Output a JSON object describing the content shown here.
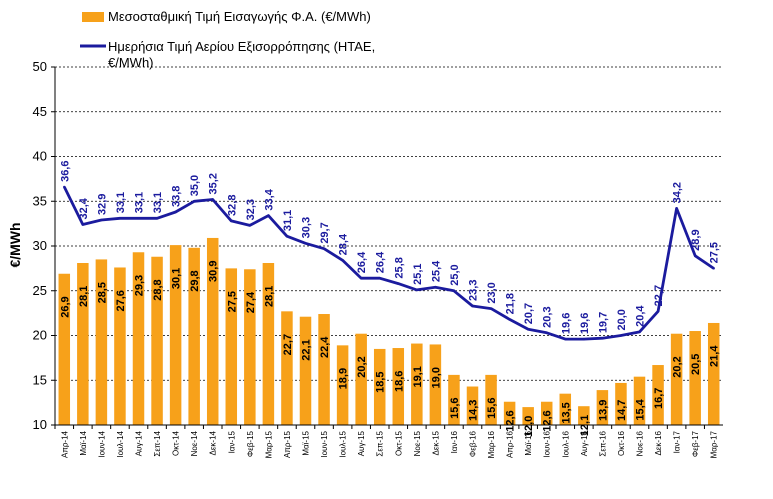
{
  "colors": {
    "bar": "#F7A11A",
    "line": "#1B1B9E",
    "grid": "#000000"
  },
  "legend": {
    "bar_label": "Μεσοσταθμική Τιμή Εισαγωγής Φ.Α. (€/MWh)",
    "line_label_1": "Ημερήσια Τιμή Αερίου Εξισορρόπησης (ΗΤΑΕ,",
    "line_label_2": "€/MWh)"
  },
  "chart_data": {
    "type": "bar",
    "ylabel": "€/MWh",
    "ylim": [
      10,
      50
    ],
    "yticks": [
      "10",
      "15",
      "20",
      "25",
      "30",
      "35",
      "40",
      "45",
      "50"
    ],
    "grid": "horizontal dashed",
    "legend_position": "top-left",
    "categories": [
      "Απρ-14",
      "Μαϊ-14",
      "Ιουν-14",
      "Ιουλ-14",
      "Αυγ-14",
      "Σεπ-14",
      "Οκτ-14",
      "Νοε-14",
      "Δεκ-14",
      "Ιαν-15",
      "Φεβ-15",
      "Μαρ-15",
      "Απρ-15",
      "Μαϊ-15",
      "Ιουν-15",
      "Ιουλ-15",
      "Αυγ-15",
      "Σεπ-15",
      "Οκτ-15",
      "Νοε-15",
      "Δεκ-15",
      "Ιαν-16",
      "Φεβ-16",
      "Μαρ-16",
      "Απρ-16",
      "Μαϊ-16",
      "Ιουν-16",
      "Ιουλ-16",
      "Αυγ-16",
      "Σεπ-16",
      "Οκτ-16",
      "Νοε-16",
      "Δεκ-16",
      "Ιαν-17",
      "Φεβ-17",
      "Μαρ-17"
    ],
    "series": [
      {
        "name": "Μεσοσταθμική Τιμή Εισαγωγής Φ.Α. (€/MWh)",
        "kind": "bar",
        "values": [
          26.9,
          28.1,
          28.5,
          27.6,
          29.3,
          28.8,
          30.1,
          29.8,
          30.9,
          27.5,
          27.4,
          28.1,
          22.7,
          22.1,
          22.4,
          18.9,
          20.2,
          18.5,
          18.6,
          19.1,
          19.0,
          15.6,
          14.3,
          15.6,
          12.6,
          12.0,
          12.6,
          13.5,
          12.1,
          13.9,
          14.7,
          15.4,
          16.7,
          20.2,
          20.5,
          21.4
        ],
        "labels": [
          "26,9",
          "28,1",
          "28,5",
          "27,6",
          "29,3",
          "28,8",
          "30,1",
          "29,8",
          "30,9",
          "27,5",
          "27,4",
          "28,1",
          "22,7",
          "22,1",
          "22,4",
          "18,9",
          "20,2",
          "18,5",
          "18,6",
          "19,1",
          "19,0",
          "15,6",
          "14,3",
          "15,6",
          "12,6",
          "12,0",
          "12,6",
          "13,5",
          "12,1",
          "13,9",
          "14,7",
          "15,4",
          "16,7",
          "20,2",
          "20,5",
          "21,4"
        ]
      },
      {
        "name": "Ημερήσια Τιμή Αερίου Εξισορρόπησης (ΗΤΑΕ, €/MWh)",
        "kind": "line",
        "values": [
          36.6,
          32.4,
          32.9,
          33.1,
          33.1,
          33.1,
          33.8,
          35.0,
          35.2,
          32.8,
          32.3,
          33.4,
          31.1,
          30.3,
          29.7,
          28.4,
          26.4,
          26.4,
          25.8,
          25.1,
          25.4,
          25.0,
          23.3,
          23.0,
          21.8,
          20.7,
          20.3,
          19.6,
          19.6,
          19.7,
          20.0,
          20.4,
          22.7,
          34.2,
          28.9,
          27.5
        ],
        "labels": [
          "36,6",
          "32,4",
          "32,9",
          "33,1",
          "33,1",
          "33,1",
          "33,8",
          "35,0",
          "35,2",
          "32,8",
          "32,3",
          "33,4",
          "31,1",
          "30,3",
          "29,7",
          "28,4",
          "26,4",
          "26,4",
          "25,8",
          "25,1",
          "25,4",
          "25,0",
          "23,3",
          "23,0",
          "21,8",
          "20,7",
          "20,3",
          "19,6",
          "19,6",
          "19,7",
          "20,0",
          "20,4",
          "22,7",
          "34,2",
          "28,9",
          "27,5"
        ]
      }
    ]
  }
}
